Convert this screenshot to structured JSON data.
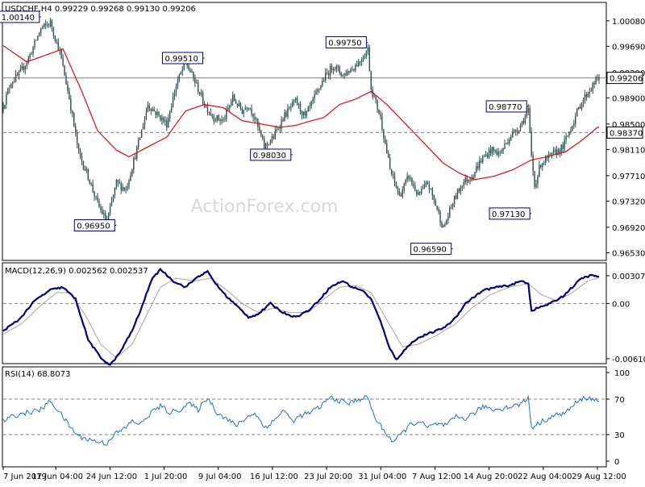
{
  "colors": {
    "background": "#ffffff",
    "frame": "#000000",
    "candle": "#2f4f4f",
    "ma": "#d01010",
    "macd": "#00007a",
    "macd_signal": "#b0a0a0",
    "rsi": "#1e6fc9",
    "label_border": "#00007a",
    "dotted": "#808080"
  },
  "chart_data": [
    {
      "type": "line",
      "panel": "price",
      "header": "USDCHF,H4  0.99229 0.99268 0.99130 0.99206",
      "watermark": "ActionForex.com",
      "x": [
        "7 Jun 2019",
        "17 Jun 04:00",
        "24 Jun 12:00",
        "1 Jul 20:00",
        "9 Jul 04:00",
        "16 Jul 12:00",
        "23 Jul 20:00",
        "31 Jul 04:00",
        "7 Aug 12:00",
        "14 Aug 20:00",
        "22 Aug 04:00",
        "29 Aug 12:00"
      ],
      "y_ticks": [
        "1.00080",
        "0.99690",
        "0.99290",
        "0.98900",
        "0.98500",
        "0.98110",
        "0.97710",
        "0.97320",
        "0.96920",
        "0.96530"
      ],
      "ylim": [
        0.9645,
        1.0025
      ],
      "close_anchors": [
        [
          0,
          0.9878
        ],
        [
          5,
          0.9915
        ],
        [
          10,
          0.9925
        ],
        [
          16,
          0.995
        ],
        [
          24,
          0.9996
        ],
        [
          30,
          1.0005
        ],
        [
          36,
          0.996
        ],
        [
          42,
          0.989
        ],
        [
          48,
          0.9805
        ],
        [
          54,
          0.977
        ],
        [
          60,
          0.9728
        ],
        [
          66,
          0.97
        ],
        [
          72,
          0.976
        ],
        [
          78,
          0.975
        ],
        [
          86,
          0.982
        ],
        [
          92,
          0.988
        ],
        [
          98,
          0.9865
        ],
        [
          104,
          0.985
        ],
        [
          110,
          0.991
        ],
        [
          116,
          0.9945
        ],
        [
          122,
          0.9915
        ],
        [
          128,
          0.988
        ],
        [
          134,
          0.986
        ],
        [
          140,
          0.9855
        ],
        [
          146,
          0.989
        ],
        [
          152,
          0.987
        ],
        [
          156,
          0.988
        ],
        [
          160,
          0.986
        ],
        [
          166,
          0.9815
        ],
        [
          172,
          0.983
        ],
        [
          178,
          0.986
        ],
        [
          186,
          0.9885
        ],
        [
          192,
          0.986
        ],
        [
          198,
          0.989
        ],
        [
          204,
          0.992
        ],
        [
          210,
          0.994
        ],
        [
          216,
          0.9925
        ],
        [
          222,
          0.9935
        ],
        [
          228,
          0.995
        ],
        [
          232,
          0.9965
        ],
        [
          234,
          0.9905
        ],
        [
          240,
          0.986
        ],
        [
          246,
          0.978
        ],
        [
          252,
          0.974
        ],
        [
          258,
          0.977
        ],
        [
          264,
          0.974
        ],
        [
          270,
          0.976
        ],
        [
          276,
          0.972
        ],
        [
          280,
          0.969
        ],
        [
          286,
          0.973
        ],
        [
          292,
          0.976
        ],
        [
          298,
          0.977
        ],
        [
          304,
          0.9795
        ],
        [
          310,
          0.981
        ],
        [
          316,
          0.9805
        ],
        [
          322,
          0.983
        ],
        [
          328,
          0.9845
        ],
        [
          334,
          0.987
        ],
        [
          336,
          0.98
        ],
        [
          338,
          0.9755
        ],
        [
          342,
          0.979
        ],
        [
          348,
          0.98
        ],
        [
          356,
          0.9815
        ],
        [
          362,
          0.985
        ],
        [
          368,
          0.9885
        ],
        [
          374,
          0.9905
        ],
        [
          378,
          0.992
        ]
      ],
      "ma_anchors": [
        [
          0,
          0.997
        ],
        [
          15,
          0.9945
        ],
        [
          30,
          0.9958
        ],
        [
          38,
          0.9965
        ],
        [
          50,
          0.99
        ],
        [
          60,
          0.984
        ],
        [
          72,
          0.981
        ],
        [
          80,
          0.98
        ],
        [
          92,
          0.9815
        ],
        [
          104,
          0.983
        ],
        [
          116,
          0.987
        ],
        [
          128,
          0.988
        ],
        [
          140,
          0.9875
        ],
        [
          152,
          0.9855
        ],
        [
          164,
          0.985
        ],
        [
          176,
          0.9845
        ],
        [
          186,
          0.9848
        ],
        [
          196,
          0.9855
        ],
        [
          204,
          0.986
        ],
        [
          214,
          0.988
        ],
        [
          224,
          0.9888
        ],
        [
          234,
          0.99
        ],
        [
          244,
          0.988
        ],
        [
          256,
          0.985
        ],
        [
          268,
          0.982
        ],
        [
          280,
          0.979
        ],
        [
          290,
          0.9775
        ],
        [
          300,
          0.9765
        ],
        [
          312,
          0.977
        ],
        [
          324,
          0.978
        ],
        [
          336,
          0.9795
        ],
        [
          346,
          0.98
        ],
        [
          358,
          0.9808
        ],
        [
          368,
          0.9825
        ],
        [
          378,
          0.9845
        ]
      ],
      "annotations": [
        {
          "label": "1.00140",
          "value": 1.0014,
          "bar": 24
        },
        {
          "label": "0.99510",
          "value": 0.9951,
          "bar": 128
        },
        {
          "label": "0.99750",
          "value": 0.9975,
          "bar": 232
        },
        {
          "label": "0.98770",
          "value": 0.9877,
          "bar": 334
        },
        {
          "label": "0.96950",
          "value": 0.9695,
          "bar": 72
        },
        {
          "label": "0.98030",
          "value": 0.9803,
          "bar": 184
        },
        {
          "label": "0.96590",
          "value": 0.9659,
          "bar": 286
        },
        {
          "label": "0.97130",
          "value": 0.9713,
          "bar": 336
        }
      ],
      "level_lines": [
        {
          "label": "0.99206",
          "value": 0.99206,
          "style": "solid"
        },
        {
          "label": "0.98370",
          "value": 0.9837,
          "style": "dashed"
        }
      ]
    },
    {
      "type": "line",
      "panel": "macd",
      "header": "MACD(12,26,9) 0.002562 0.002537",
      "y_ticks": [
        "0.003071",
        "0.00",
        "-0.006101"
      ],
      "ylim": [
        -0.0062,
        0.0036
      ],
      "macd_anchors": [
        [
          0,
          -0.003
        ],
        [
          10,
          -0.0018
        ],
        [
          20,
          0.0003
        ],
        [
          30,
          0.0015
        ],
        [
          38,
          0.0018
        ],
        [
          46,
          0.0005
        ],
        [
          54,
          -0.004
        ],
        [
          62,
          -0.006
        ],
        [
          68,
          -0.0068
        ],
        [
          74,
          -0.0055
        ],
        [
          82,
          -0.003
        ],
        [
          88,
          -0.0005
        ],
        [
          94,
          0.0025
        ],
        [
          100,
          0.0038
        ],
        [
          108,
          0.0025
        ],
        [
          116,
          0.0018
        ],
        [
          124,
          0.003
        ],
        [
          130,
          0.0035
        ],
        [
          136,
          0.002
        ],
        [
          142,
          0.0008
        ],
        [
          150,
          -0.0005
        ],
        [
          156,
          -0.0015
        ],
        [
          162,
          -0.0012
        ],
        [
          170,
          0.0
        ],
        [
          178,
          -0.001
        ],
        [
          186,
          -0.0015
        ],
        [
          194,
          -0.0008
        ],
        [
          200,
          0.0002
        ],
        [
          208,
          0.0018
        ],
        [
          216,
          0.0025
        ],
        [
          222,
          0.0018
        ],
        [
          228,
          0.0015
        ],
        [
          234,
          0.0005
        ],
        [
          240,
          -0.002
        ],
        [
          246,
          -0.005
        ],
        [
          250,
          -0.0062
        ],
        [
          256,
          -0.005
        ],
        [
          262,
          -0.004
        ],
        [
          268,
          -0.0035
        ],
        [
          276,
          -0.003
        ],
        [
          282,
          -0.0025
        ],
        [
          288,
          -0.0015
        ],
        [
          294,
          0.0
        ],
        [
          300,
          0.0008
        ],
        [
          306,
          0.0015
        ],
        [
          314,
          0.0018
        ],
        [
          322,
          0.002
        ],
        [
          330,
          0.0025
        ],
        [
          334,
          0.0022
        ],
        [
          336,
          -0.0008
        ],
        [
          340,
          -0.0005
        ],
        [
          348,
          0.0
        ],
        [
          356,
          0.0008
        ],
        [
          362,
          0.0018
        ],
        [
          368,
          0.0028
        ],
        [
          374,
          0.0031
        ],
        [
          378,
          0.003
        ]
      ],
      "signal_anchors": [
        [
          0,
          -0.0034
        ],
        [
          12,
          -0.0022
        ],
        [
          24,
          -0.0002
        ],
        [
          34,
          0.0012
        ],
        [
          42,
          0.0012
        ],
        [
          52,
          -0.0012
        ],
        [
          62,
          -0.0045
        ],
        [
          72,
          -0.006
        ],
        [
          82,
          -0.0045
        ],
        [
          92,
          -0.001
        ],
        [
          100,
          0.0018
        ],
        [
          110,
          0.0028
        ],
        [
          122,
          0.0025
        ],
        [
          132,
          0.0028
        ],
        [
          142,
          0.0015
        ],
        [
          152,
          0.0
        ],
        [
          162,
          -0.001
        ],
        [
          172,
          -0.0005
        ],
        [
          182,
          -0.001
        ],
        [
          194,
          -0.001
        ],
        [
          204,
          0.0005
        ],
        [
          214,
          0.0018
        ],
        [
          224,
          0.002
        ],
        [
          234,
          0.0012
        ],
        [
          244,
          -0.0018
        ],
        [
          254,
          -0.0048
        ],
        [
          264,
          -0.0045
        ],
        [
          276,
          -0.0035
        ],
        [
          288,
          -0.0022
        ],
        [
          298,
          -0.0005
        ],
        [
          310,
          0.001
        ],
        [
          322,
          0.0018
        ],
        [
          334,
          0.0022
        ],
        [
          342,
          0.001
        ],
        [
          352,
          0.0003
        ],
        [
          362,
          0.0012
        ],
        [
          372,
          0.0025
        ],
        [
          378,
          0.0028
        ]
      ]
    },
    {
      "type": "line",
      "panel": "rsi",
      "header": "RSI(14) 68.8073",
      "y_ticks": [
        "100",
        "70",
        "30",
        "0"
      ],
      "ylim": [
        0,
        100
      ],
      "levels": [
        70,
        30
      ],
      "rsi_anchors": [
        [
          0,
          45
        ],
        [
          8,
          52
        ],
        [
          16,
          55
        ],
        [
          24,
          58
        ],
        [
          30,
          68
        ],
        [
          36,
          55
        ],
        [
          42,
          40
        ],
        [
          48,
          28
        ],
        [
          54,
          25
        ],
        [
          60,
          22
        ],
        [
          66,
          20
        ],
        [
          70,
          30
        ],
        [
          76,
          35
        ],
        [
          82,
          45
        ],
        [
          88,
          42
        ],
        [
          94,
          55
        ],
        [
          100,
          62
        ],
        [
          106,
          55
        ],
        [
          112,
          58
        ],
        [
          118,
          65
        ],
        [
          124,
          58
        ],
        [
          130,
          72
        ],
        [
          136,
          55
        ],
        [
          142,
          48
        ],
        [
          148,
          40
        ],
        [
          154,
          48
        ],
        [
          160,
          55
        ],
        [
          166,
          38
        ],
        [
          172,
          45
        ],
        [
          178,
          58
        ],
        [
          184,
          45
        ],
        [
          190,
          52
        ],
        [
          196,
          55
        ],
        [
          202,
          62
        ],
        [
          208,
          72
        ],
        [
          214,
          68
        ],
        [
          220,
          65
        ],
        [
          226,
          70
        ],
        [
          232,
          72
        ],
        [
          236,
          50
        ],
        [
          242,
          35
        ],
        [
          248,
          22
        ],
        [
          252,
          28
        ],
        [
          258,
          40
        ],
        [
          264,
          45
        ],
        [
          270,
          38
        ],
        [
          276,
          42
        ],
        [
          282,
          40
        ],
        [
          288,
          50
        ],
        [
          294,
          48
        ],
        [
          300,
          55
        ],
        [
          306,
          62
        ],
        [
          312,
          58
        ],
        [
          318,
          60
        ],
        [
          324,
          62
        ],
        [
          330,
          65
        ],
        [
          334,
          72
        ],
        [
          336,
          38
        ],
        [
          340,
          42
        ],
        [
          346,
          48
        ],
        [
          352,
          52
        ],
        [
          358,
          55
        ],
        [
          364,
          65
        ],
        [
          370,
          72
        ],
        [
          374,
          70
        ],
        [
          378,
          69
        ]
      ]
    }
  ]
}
